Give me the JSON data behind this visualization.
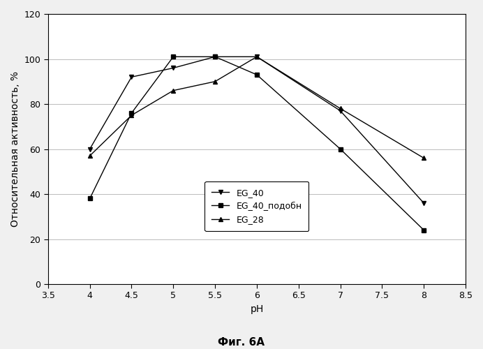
{
  "series": [
    {
      "label": "EG_40",
      "x": [
        4.0,
        4.5,
        5.0,
        5.5,
        6.0,
        7.0,
        8.0
      ],
      "y": [
        60,
        92,
        96,
        101,
        101,
        77,
        36
      ],
      "color": "#000000",
      "marker": "v",
      "linestyle": "-"
    },
    {
      "label": "EG_40_подобн",
      "x": [
        4.0,
        4.5,
        5.0,
        5.5,
        6.0,
        7.0,
        8.0
      ],
      "y": [
        38,
        76,
        101,
        101,
        93,
        60,
        24
      ],
      "color": "#000000",
      "marker": "s",
      "linestyle": "-"
    },
    {
      "label": "EG_28",
      "x": [
        4.0,
        4.5,
        5.0,
        5.5,
        6.0,
        7.0,
        8.0
      ],
      "y": [
        57,
        75,
        86,
        90,
        101,
        78,
        56
      ],
      "color": "#000000",
      "marker": "^",
      "linestyle": "-"
    }
  ],
  "xlabel": "pH",
  "ylabel": "Относительная активность, %",
  "xlim": [
    3.5,
    8.5
  ],
  "ylim": [
    0,
    120
  ],
  "xticks": [
    3.5,
    4.0,
    4.5,
    5.0,
    5.5,
    6.0,
    6.5,
    7.0,
    7.5,
    8.0,
    8.5
  ],
  "yticks": [
    0,
    20,
    40,
    60,
    80,
    100,
    120
  ],
  "caption": "Фиг. 6A",
  "background_color": "#f0f0f0",
  "plot_bg_color": "#ffffff",
  "grid_color": "#bbbbbb",
  "axis_fontsize": 10,
  "tick_fontsize": 9,
  "legend_fontsize": 9,
  "caption_fontsize": 11
}
